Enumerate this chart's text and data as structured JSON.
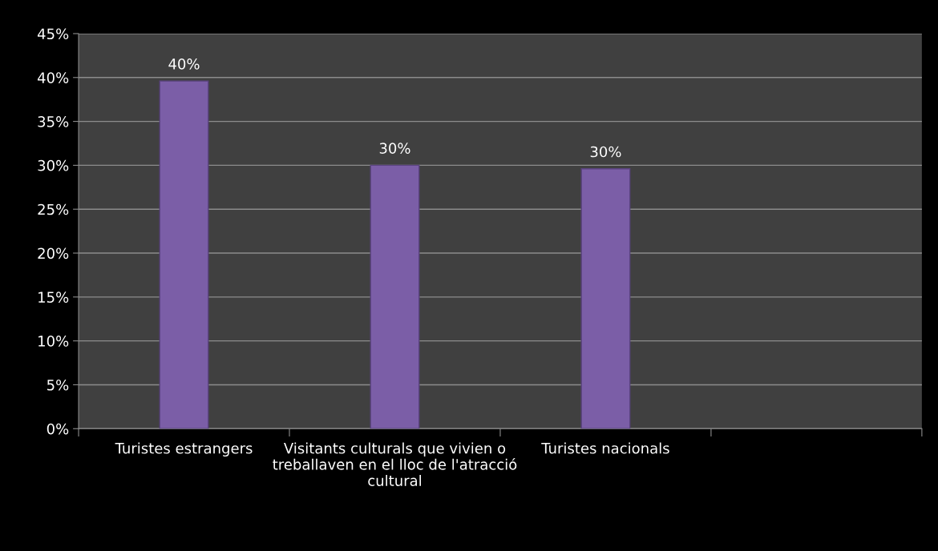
{
  "chart_data": {
    "type": "bar",
    "categories": [
      "Turistes estrangers",
      "Visitants culturals que vivien o treballaven en el lloc de l'atracció cultural",
      "Turistes nacionals",
      null
    ],
    "values": [
      39.6,
      30.0,
      29.6,
      null
    ],
    "value_labels": [
      "40%",
      "30%",
      "30%",
      null
    ],
    "color": "#7b5ea7",
    "ylim": [
      0,
      45
    ],
    "yticks": [
      {
        "value": 0,
        "label": "0%"
      },
      {
        "value": 5,
        "label": "5%"
      },
      {
        "value": 10,
        "label": "10%"
      },
      {
        "value": 15,
        "label": "15%"
      },
      {
        "value": 20,
        "label": "20%"
      },
      {
        "value": 25,
        "label": "25%"
      },
      {
        "value": 30,
        "label": "30%"
      },
      {
        "value": 35,
        "label": "35%"
      },
      {
        "value": 40,
        "label": "40%"
      },
      {
        "value": 45,
        "label": "45%"
      }
    ],
    "grid": "y",
    "legend": false
  }
}
